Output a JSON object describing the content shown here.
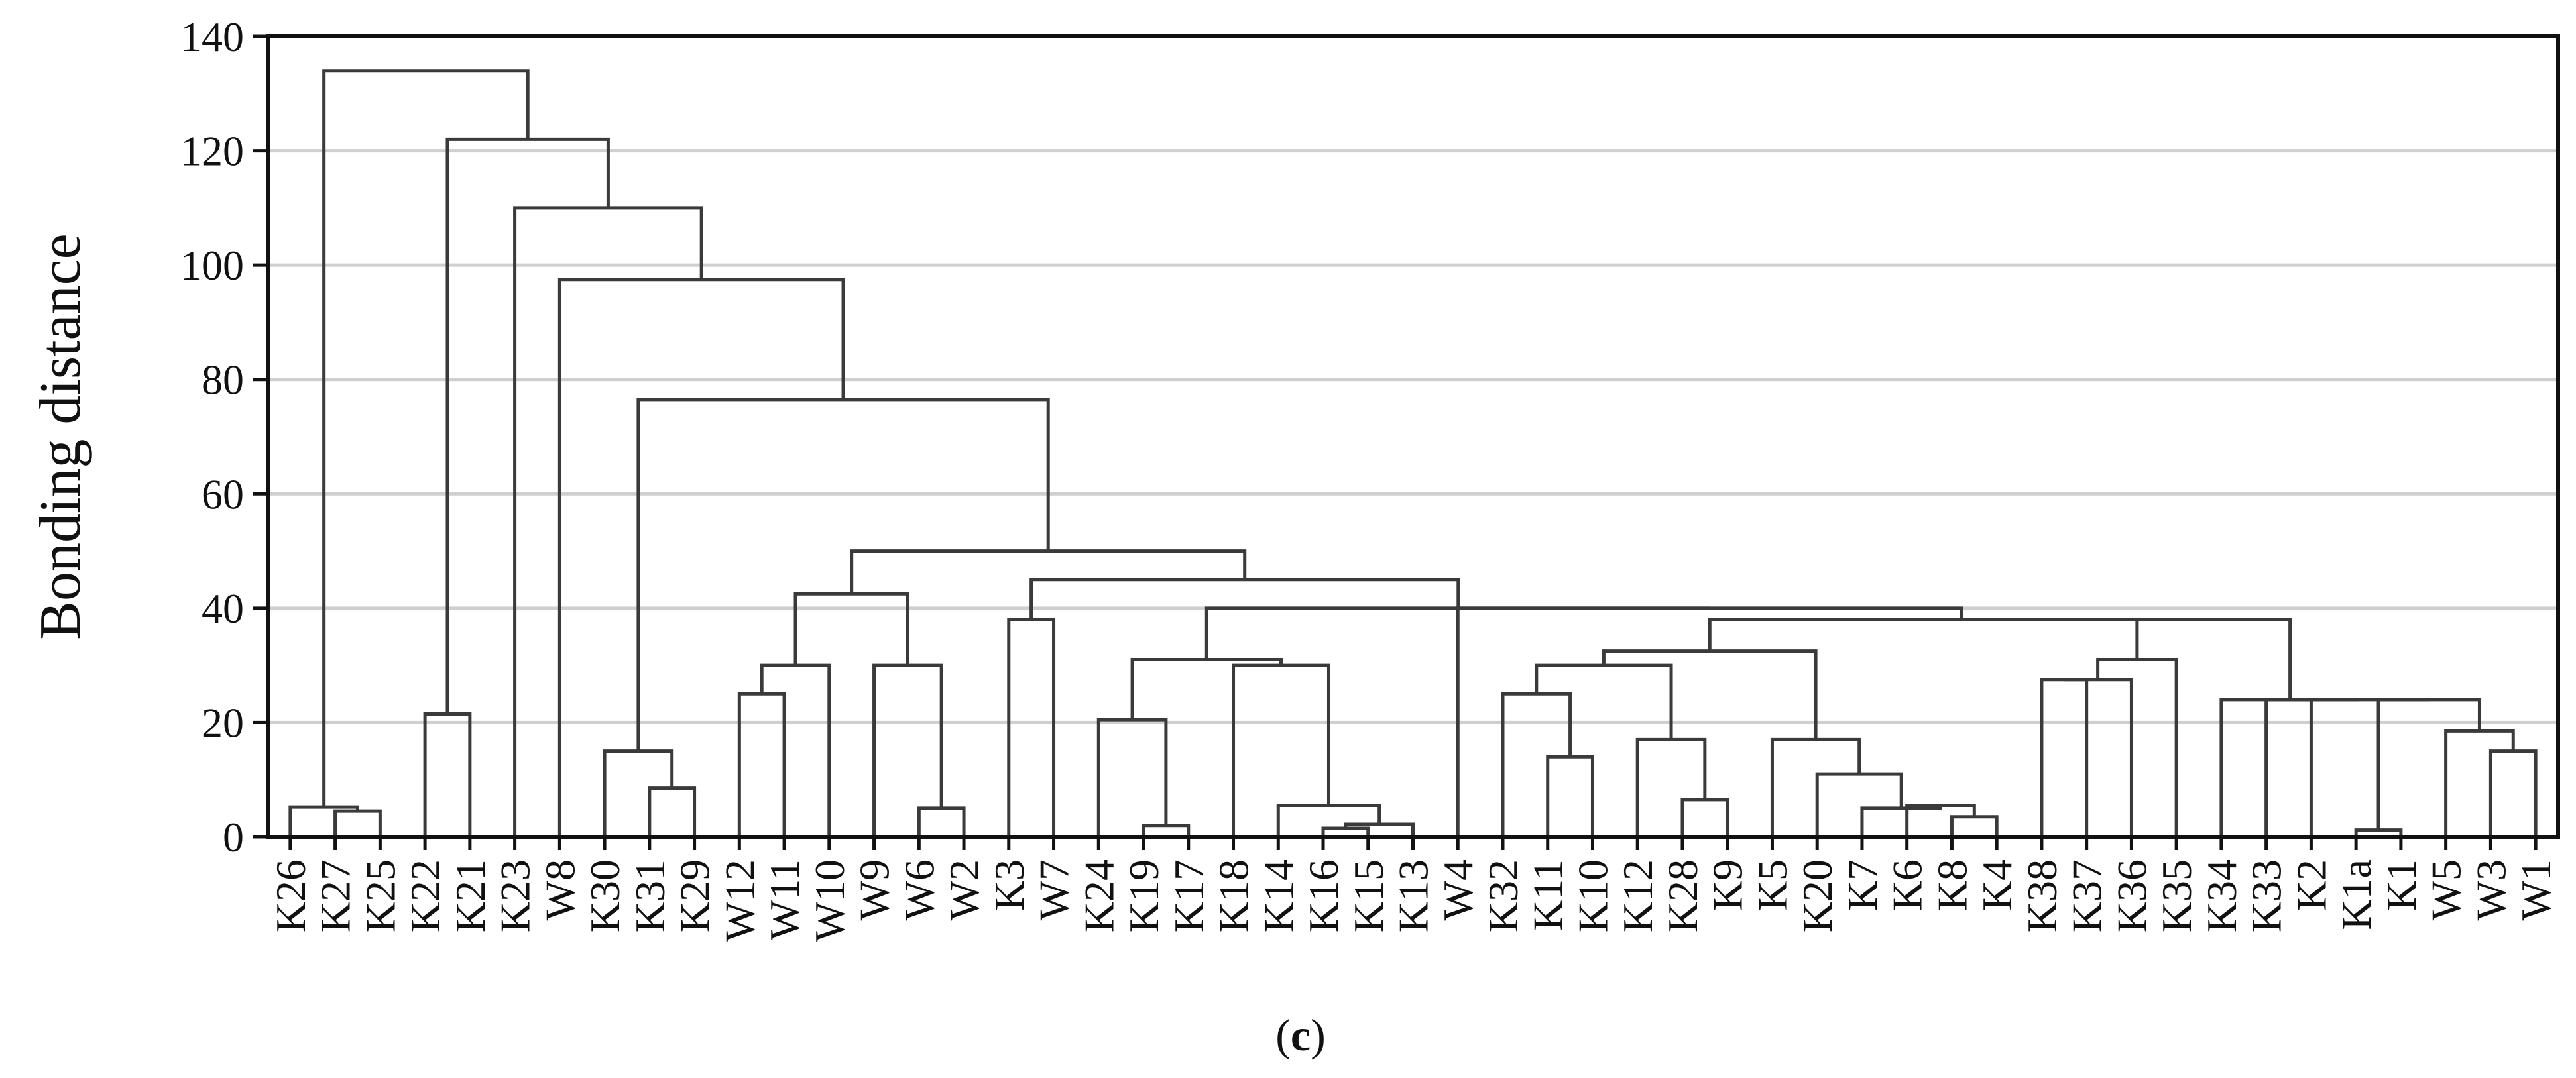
{
  "chart_data": {
    "type": "dendrogram",
    "ylabel": "Bonding distance",
    "caption_paren_open": "(",
    "caption_letter": "c",
    "caption_paren_close": ")",
    "ylim": [
      0,
      140
    ],
    "yticks": [
      0,
      20,
      40,
      60,
      80,
      100,
      120,
      140
    ],
    "grid": true,
    "leaves": [
      "K26",
      "K27",
      "K25",
      "K22",
      "K21",
      "K23",
      "W8",
      "K30",
      "K31",
      "K29",
      "W12",
      "W11",
      "W10",
      "W9",
      "W6",
      "W2",
      "K3",
      "W7",
      "K24",
      "K19",
      "K17",
      "K18",
      "K14",
      "K16",
      "K15",
      "K13",
      "W4",
      "K32",
      "K11",
      "K10",
      "K12",
      "K28",
      "K9",
      "K5",
      "K20",
      "K7",
      "K6",
      "K8",
      "K4",
      "K38",
      "K37",
      "K36",
      "K35",
      "K34",
      "K33",
      "K2",
      "K1a",
      "K1",
      "W5",
      "W3",
      "W1"
    ],
    "merges": [
      {
        "a": "K27",
        "b": "K25",
        "height": 4.5
      },
      {
        "a": "K26",
        "b": "c1",
        "height": 5.2
      },
      {
        "a": "K22",
        "b": "K21",
        "height": 21.5
      },
      {
        "a": "K31",
        "b": "K29",
        "height": 8.5
      },
      {
        "a": "K30",
        "b": "c4",
        "height": 15.0
      },
      {
        "a": "W12",
        "b": "W11",
        "height": 25.0
      },
      {
        "a": "c6",
        "b": "W10",
        "height": 30.0
      },
      {
        "a": "W6",
        "b": "W2",
        "height": 5.0
      },
      {
        "a": "W9",
        "b": "c8",
        "height": 30.0
      },
      {
        "a": "c7",
        "b": "c9",
        "height": 42.5
      },
      {
        "a": "K3",
        "b": "W7",
        "height": 38.0
      },
      {
        "a": "K19",
        "b": "K17",
        "height": 2.0
      },
      {
        "a": "K24",
        "b": "c12",
        "height": 20.5
      },
      {
        "a": "K16",
        "b": "K15",
        "height": 1.5
      },
      {
        "a": "c14",
        "b": "K13",
        "height": 2.2
      },
      {
        "a": "K14",
        "b": "c15",
        "height": 5.5
      },
      {
        "a": "K18",
        "b": "c16",
        "height": 30.0
      },
      {
        "a": "c13",
        "b": "c17",
        "height": 31.0
      },
      {
        "a": "K11",
        "b": "K10",
        "height": 14.0
      },
      {
        "a": "K32",
        "b": "c19",
        "height": 25.0
      },
      {
        "a": "K28",
        "b": "K9",
        "height": 6.5
      },
      {
        "a": "K12",
        "b": "c21",
        "height": 17.0
      },
      {
        "a": "c20",
        "b": "c22",
        "height": 30.0
      },
      {
        "a": "K8",
        "b": "K4",
        "height": 3.5
      },
      {
        "a": "K6",
        "b": "c24",
        "height": 5.5
      },
      {
        "a": "K7",
        "b": "c25",
        "height": 5.0
      },
      {
        "a": "K20",
        "b": "c26",
        "height": 11.0
      },
      {
        "a": "K5",
        "b": "c27",
        "height": 17.0
      },
      {
        "a": "c23",
        "b": "c28",
        "height": 32.5
      },
      {
        "a": "K38",
        "b": "K37",
        "height": 27.5
      },
      {
        "a": "c30",
        "b": "K36",
        "height": 27.5
      },
      {
        "a": "c31",
        "b": "K35",
        "height": 31.0
      },
      {
        "a": "K1a",
        "b": "K1",
        "height": 1.2
      },
      {
        "a": "W3",
        "b": "W1",
        "height": 15.0
      },
      {
        "a": "W5",
        "b": "c34",
        "height": 18.5
      },
      {
        "a": "c33",
        "b": "c35",
        "height": 24.0
      },
      {
        "a": "K33",
        "b": "K2",
        "height": 24.0
      },
      {
        "a": "c37",
        "b": "c36",
        "height": 24.0
      },
      {
        "a": "K34",
        "b": "c38",
        "height": 24.0
      },
      {
        "a": "c32",
        "b": "c39",
        "height": 38.0
      },
      {
        "a": "c29",
        "b": "c40",
        "height": 38.0
      },
      {
        "a": "W4",
        "b": "c41",
        "height": 40.0
      },
      {
        "a": "c18",
        "b": "c42",
        "height": 40.0
      },
      {
        "a": "c11",
        "b": "c43",
        "height": 45.0
      },
      {
        "a": "c10",
        "b": "c44",
        "height": 50.0
      },
      {
        "a": "c5",
        "b": "c45",
        "height": 76.5
      },
      {
        "a": "W8",
        "b": "c46",
        "height": 97.5
      },
      {
        "a": "K23",
        "b": "c47",
        "height": 110.0
      },
      {
        "a": "c3",
        "b": "c48",
        "height": 122.0
      },
      {
        "a": "c2",
        "b": "c49",
        "height": 134.0
      }
    ]
  }
}
